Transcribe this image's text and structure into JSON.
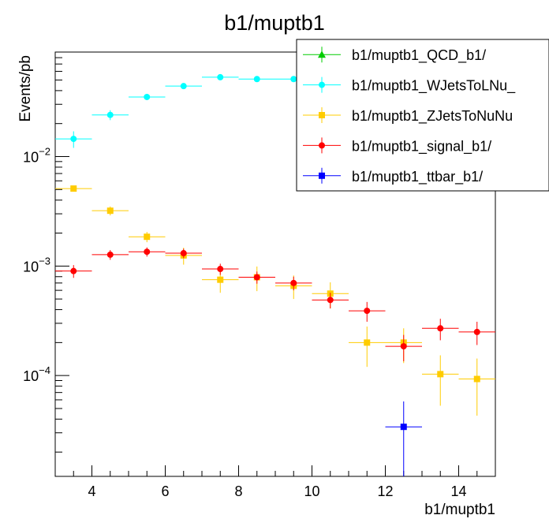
{
  "chart_data": {
    "type": "scatter",
    "title": "b1/muptb1",
    "xlabel": "b1/muptb1",
    "ylabel": "Events/pb",
    "xlim": [
      3,
      15
    ],
    "ylim": [
      1.2e-05,
      0.09
    ],
    "yscale": "log",
    "x_ticks": [
      4,
      6,
      8,
      10,
      12,
      14
    ],
    "y_tick_labels": [
      {
        "value": 0.01,
        "base": "10",
        "exp": "−2"
      },
      {
        "value": 0.001,
        "base": "10",
        "exp": "−3"
      },
      {
        "value": 0.0001,
        "base": "10",
        "exp": "−4"
      }
    ],
    "grid": false,
    "legend_position": "top-right",
    "series": [
      {
        "name": "b1/muptb1_QCD_b1/",
        "color": "#00cc00",
        "marker": "triangle",
        "points": []
      },
      {
        "name": "b1/muptb1_WJetsToLNu_",
        "color": "#00ffff",
        "marker": "circle",
        "points": [
          {
            "x": 3.5,
            "y": 0.0145,
            "err": 0.0025
          },
          {
            "x": 4.5,
            "y": 0.024,
            "err": 0.0025
          },
          {
            "x": 5.5,
            "y": 0.035,
            "err": 0.002
          },
          {
            "x": 6.5,
            "y": 0.044,
            "err": 0.002
          },
          {
            "x": 7.5,
            "y": 0.053,
            "err": 0.0025
          },
          {
            "x": 8.5,
            "y": 0.051,
            "err": 0.0025
          },
          {
            "x": 9.5,
            "y": 0.051,
            "err": 0.0025
          }
        ]
      },
      {
        "name": "b1/muptb1_ZJetsToNuNu",
        "color": "#ffcc00",
        "marker": "square",
        "points": [
          {
            "x": 3.5,
            "y": 0.0051,
            "err": 0.0003
          },
          {
            "x": 4.5,
            "y": 0.0032,
            "err": 0.0003
          },
          {
            "x": 5.5,
            "y": 0.00185,
            "err": 0.0002
          },
          {
            "x": 6.5,
            "y": 0.00125,
            "err": 0.00022
          },
          {
            "x": 7.5,
            "y": 0.00075,
            "err": 0.00018
          },
          {
            "x": 8.5,
            "y": 0.00079,
            "err": 0.0002
          },
          {
            "x": 9.5,
            "y": 0.00066,
            "err": 0.00016
          },
          {
            "x": 10.5,
            "y": 0.00056,
            "err": 0.00015
          },
          {
            "x": 11.5,
            "y": 0.0002,
            "err": 8e-05
          },
          {
            "x": 12.5,
            "y": 0.0002,
            "err": 7e-05
          },
          {
            "x": 13.5,
            "y": 0.000103,
            "err": 5e-05
          },
          {
            "x": 14.5,
            "y": 9.3e-05,
            "err": 5e-05
          }
        ]
      },
      {
        "name": "b1/muptb1_signal_b1/",
        "color": "#ff0000",
        "marker": "circle",
        "points": [
          {
            "x": 3.5,
            "y": 0.0009,
            "err": 0.00012
          },
          {
            "x": 4.5,
            "y": 0.00127,
            "err": 0.00013
          },
          {
            "x": 5.5,
            "y": 0.00135,
            "err": 0.00013
          },
          {
            "x": 6.5,
            "y": 0.00131,
            "err": 0.00013
          },
          {
            "x": 7.5,
            "y": 0.00094,
            "err": 0.00011
          },
          {
            "x": 8.5,
            "y": 0.00079,
            "err": 0.0001
          },
          {
            "x": 9.5,
            "y": 0.0007,
            "err": 0.0001
          },
          {
            "x": 10.5,
            "y": 0.00049,
            "err": 8e-05
          },
          {
            "x": 11.5,
            "y": 0.00039,
            "err": 8e-05
          },
          {
            "x": 12.5,
            "y": 0.000185,
            "err": 5e-05
          },
          {
            "x": 13.5,
            "y": 0.00027,
            "err": 6e-05
          },
          {
            "x": 14.5,
            "y": 0.00025,
            "err": 6e-05
          }
        ]
      },
      {
        "name": "b1/muptb1_ttbar_b1/",
        "color": "#0000ff",
        "marker": "square",
        "points": [
          {
            "x": 12.5,
            "y": 3.4e-05,
            "err": 2.4e-05
          }
        ]
      }
    ]
  }
}
